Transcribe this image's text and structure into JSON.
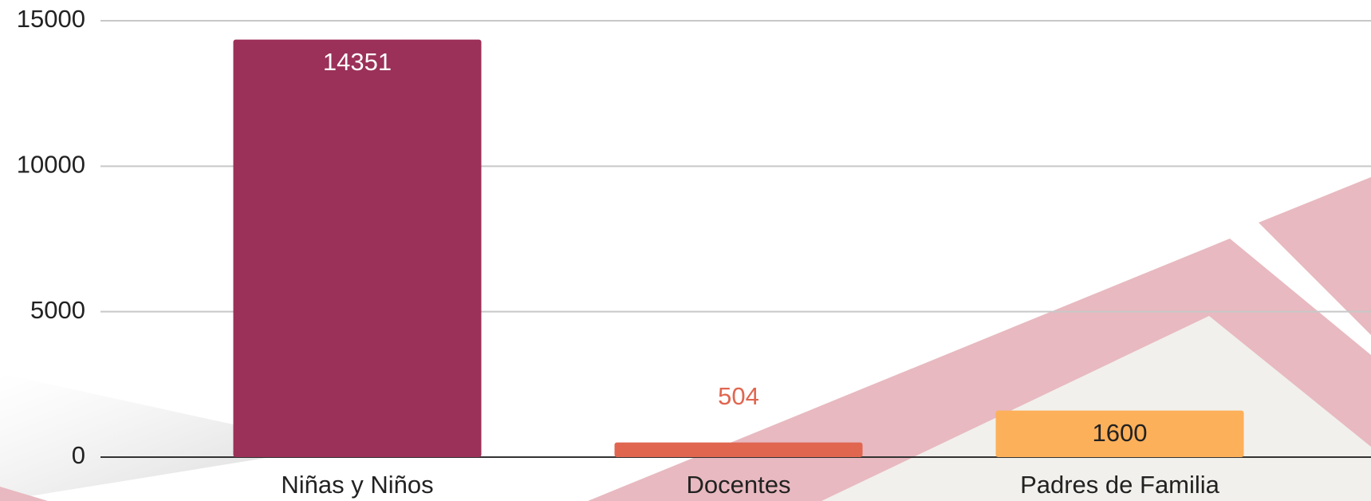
{
  "chart_data": {
    "type": "bar",
    "categories": [
      "Niñas y Niños",
      "Docentes",
      "Padres de Familia"
    ],
    "values": [
      14351,
      504,
      1600
    ],
    "colors": [
      "#9b3058",
      "#e06650",
      "#fdb05a"
    ],
    "ylim": [
      0,
      15000
    ],
    "yticks": [
      0,
      5000,
      10000,
      15000
    ],
    "grid": true
  }
}
